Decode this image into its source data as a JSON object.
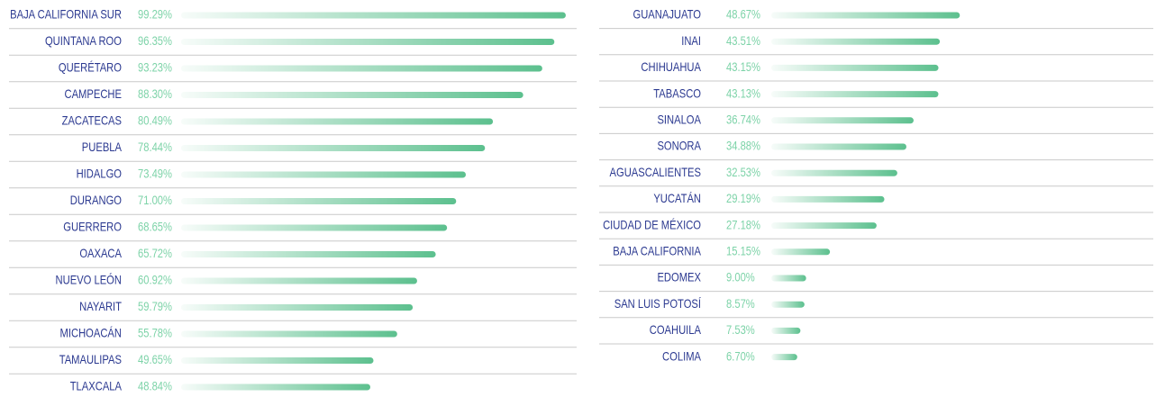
{
  "chart_data": [
    {
      "type": "bar",
      "orientation": "horizontal",
      "color": "#5cc08e",
      "categories": [
        "BAJA CALIFORNIA SUR",
        "QUINTANA ROO",
        "QUERÉTARO",
        "CAMPECHE",
        "ZACATECAS",
        "PUEBLA",
        "HIDALGO",
        "DURANGO",
        "GUERRERO",
        "OAXACA",
        "NUEVO LEÓN",
        "NAYARIT",
        "MICHOACÁN",
        "TAMAULIPAS",
        "TLAXCALA"
      ],
      "values": [
        99.29,
        96.35,
        93.23,
        88.3,
        80.49,
        78.44,
        73.49,
        71.0,
        68.65,
        65.72,
        60.92,
        59.79,
        55.78,
        49.65,
        48.84
      ],
      "value_labels": [
        "99.29%",
        "96.35%",
        "93.23%",
        "88.30%",
        "80.49%",
        "78.44%",
        "73.49%",
        "71.00%",
        "68.65%",
        "65.72%",
        "60.92%",
        "59.79%",
        "55.78%",
        "49.65%",
        "48.84%"
      ]
    },
    {
      "type": "bar",
      "orientation": "horizontal",
      "color": "#5cc08e",
      "categories": [
        "GUANAJUATO",
        "INAI",
        "CHIHUAHUA",
        "TABASCO",
        "SINALOA",
        "SONORA",
        "AGUASCALIENTES",
        "YUCATÁN",
        "CIUDAD DE MÉXICO",
        "BAJA CALIFORNIA",
        "EDOMEX",
        "SAN LUIS POTOSÍ",
        "COAHUILA",
        "COLIMA"
      ],
      "values": [
        48.67,
        43.51,
        43.15,
        43.13,
        36.74,
        34.88,
        32.53,
        29.19,
        27.18,
        15.15,
        9.0,
        8.57,
        7.53,
        6.7
      ],
      "value_labels": [
        "48.67%",
        "43.51%",
        "43.15%",
        "43.13%",
        "36.74%",
        "34.88%",
        "32.53%",
        "29.19%",
        "27.18%",
        "15.15%",
        "9.00%",
        "8.57%",
        "7.53%",
        "6.70%"
      ]
    }
  ]
}
